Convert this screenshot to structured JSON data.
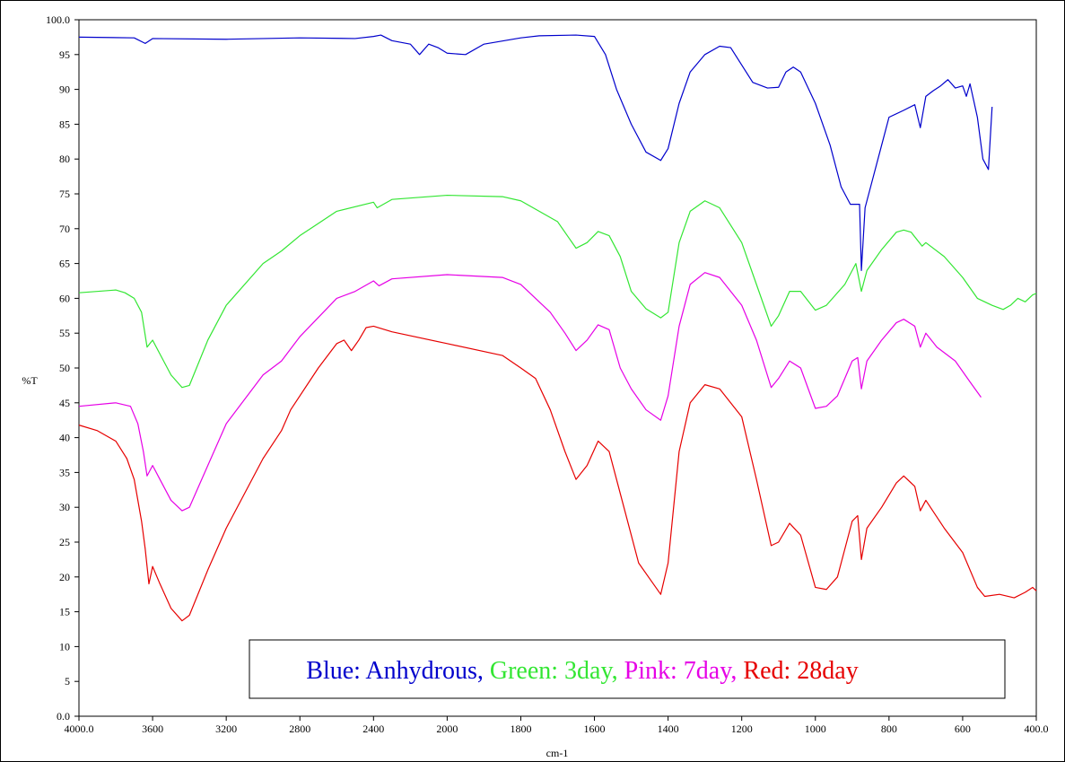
{
  "chart_data": {
    "type": "line",
    "xlabel": "cm-1",
    "ylabel": "%T",
    "ylim": [
      0,
      100
    ],
    "xlim": [
      4000,
      400
    ],
    "yticks": [
      {
        "value": 0,
        "label": "0.0"
      },
      5,
      10,
      15,
      20,
      25,
      30,
      35,
      40,
      45,
      50,
      55,
      60,
      65,
      70,
      75,
      80,
      85,
      90,
      95,
      {
        "value": 100,
        "label": "100.0"
      }
    ],
    "xticks": [
      {
        "value": 4000,
        "label": "4000.0"
      },
      3600,
      3200,
      2800,
      2400,
      2000,
      1800,
      1600,
      1400,
      1200,
      1000,
      800,
      600,
      {
        "value": 400,
        "label": "400.0"
      }
    ],
    "series": [
      {
        "name": "Blue: Anhydrous,",
        "color": "#0000cc",
        "x": [
          4000,
          3700,
          3640,
          3600,
          3200,
          2800,
          2500,
          2400,
          2360,
          2300,
          2200,
          2150,
          2100,
          2050,
          2000,
          1950,
          1900,
          1800,
          1750,
          1650,
          1600,
          1570,
          1540,
          1500,
          1460,
          1420,
          1400,
          1370,
          1340,
          1300,
          1260,
          1230,
          1200,
          1170,
          1130,
          1100,
          1080,
          1060,
          1040,
          1000,
          960,
          930,
          905,
          880,
          875,
          865,
          850,
          820,
          800,
          760,
          730,
          715,
          700,
          680,
          660,
          640,
          620,
          600,
          590,
          580,
          560,
          545,
          530,
          520
        ],
        "values": [
          97.5,
          97.4,
          96.6,
          97.3,
          97.2,
          97.4,
          97.3,
          97.6,
          97.8,
          97.0,
          96.5,
          95.0,
          96.5,
          96.0,
          95.2,
          95.0,
          96.5,
          97.4,
          97.7,
          97.8,
          97.6,
          95,
          90,
          85,
          81,
          79.8,
          81.5,
          88,
          92.5,
          95,
          96.2,
          96,
          93.5,
          91,
          90.2,
          90.3,
          92.5,
          93.2,
          92.5,
          88,
          82,
          76,
          73.5,
          73.5,
          64,
          73,
          76,
          82,
          86,
          87,
          87.8,
          84.5,
          89,
          89.8,
          90.5,
          91.4,
          90.2,
          90.5,
          89,
          90.8,
          86,
          80,
          78.5,
          87.5
        ]
      },
      {
        "name": "Green: 3day,",
        "color": "#33e633",
        "x": [
          4000,
          3800,
          3750,
          3700,
          3660,
          3630,
          3600,
          3560,
          3500,
          3440,
          3400,
          3300,
          3200,
          3000,
          2900,
          2800,
          2600,
          2400,
          2380,
          2300,
          2000,
          1850,
          1800,
          1700,
          1650,
          1620,
          1590,
          1560,
          1530,
          1500,
          1460,
          1420,
          1400,
          1370,
          1340,
          1300,
          1260,
          1200,
          1160,
          1120,
          1100,
          1070,
          1040,
          1000,
          970,
          920,
          890,
          875,
          860,
          820,
          780,
          760,
          740,
          710,
          700,
          650,
          600,
          560,
          520,
          490,
          470,
          450,
          430,
          410,
          400
        ],
        "values": [
          60.8,
          61.2,
          60.8,
          60,
          58,
          53,
          54,
          52,
          49,
          47.2,
          47.5,
          54,
          59,
          65,
          66.8,
          69,
          72.5,
          73.8,
          73,
          74.2,
          74.8,
          74.6,
          74,
          71,
          67.2,
          68,
          69.6,
          69,
          66,
          61,
          58.5,
          57.2,
          58,
          68,
          72.5,
          74,
          73,
          68,
          62,
          56,
          57.5,
          61,
          61,
          58.3,
          59,
          62,
          65,
          61,
          64,
          67,
          69.5,
          69.8,
          69.5,
          67.5,
          68,
          66,
          63,
          60,
          59,
          58.4,
          59,
          60,
          59.5,
          60.5,
          60.7
        ]
      },
      {
        "name": "Pink: 7day,",
        "color": "#e600e6",
        "x": [
          4000,
          3800,
          3720,
          3680,
          3650,
          3630,
          3600,
          3560,
          3500,
          3440,
          3400,
          3300,
          3200,
          3000,
          2900,
          2800,
          2600,
          2500,
          2400,
          2370,
          2300,
          2000,
          1850,
          1800,
          1720,
          1680,
          1650,
          1620,
          1590,
          1560,
          1530,
          1500,
          1460,
          1420,
          1400,
          1370,
          1340,
          1300,
          1260,
          1200,
          1160,
          1120,
          1100,
          1070,
          1040,
          1000,
          970,
          940,
          900,
          885,
          875,
          860,
          820,
          780,
          760,
          730,
          715,
          700,
          670,
          620,
          580,
          550
        ],
        "values": [
          44.5,
          45,
          44.5,
          42,
          38,
          34.5,
          36,
          34,
          31,
          29.5,
          30,
          36,
          42,
          49,
          51,
          54.5,
          60,
          61,
          62.5,
          61.8,
          62.8,
          63.4,
          63,
          62,
          58,
          55,
          52.5,
          54,
          56.2,
          55.5,
          50,
          47,
          44,
          42.5,
          46,
          56,
          62,
          63.7,
          63,
          59,
          54,
          47.2,
          48.5,
          51,
          50,
          44.2,
          44.5,
          46,
          51,
          51.5,
          47,
          51,
          54,
          56.5,
          57,
          56,
          53,
          55,
          53,
          51,
          48,
          45.8
        ]
      },
      {
        "name": "Red: 28day",
        "color": "#e60000",
        "x": [
          4000,
          3900,
          3800,
          3740,
          3700,
          3660,
          3640,
          3620,
          3600,
          3560,
          3500,
          3440,
          3400,
          3300,
          3200,
          3000,
          2900,
          2850,
          2700,
          2600,
          2560,
          2520,
          2480,
          2440,
          2400,
          2300,
          2000,
          1850,
          1800,
          1760,
          1720,
          1680,
          1650,
          1620,
          1590,
          1560,
          1520,
          1480,
          1440,
          1420,
          1400,
          1370,
          1340,
          1300,
          1260,
          1200,
          1160,
          1120,
          1100,
          1070,
          1040,
          1000,
          970,
          940,
          900,
          885,
          875,
          860,
          820,
          780,
          760,
          730,
          715,
          700,
          650,
          600,
          560,
          540,
          500,
          460,
          430,
          410,
          400
        ],
        "values": [
          41.8,
          41,
          39.5,
          37,
          34,
          28,
          24,
          19,
          21.5,
          19,
          15.5,
          13.7,
          14.5,
          21,
          27,
          37,
          41,
          44,
          50,
          53.5,
          54,
          52.5,
          54,
          55.8,
          56,
          55.2,
          53.5,
          51.8,
          50,
          48.5,
          44,
          38,
          34,
          36,
          39.5,
          38,
          30,
          22,
          19,
          17.5,
          22,
          38,
          45,
          47.6,
          47,
          43,
          34,
          24.5,
          25,
          27.7,
          26,
          18.5,
          18.2,
          20,
          28,
          28.8,
          22.5,
          27,
          30,
          33.5,
          34.5,
          33,
          29.5,
          31,
          27,
          23.5,
          18.5,
          17.2,
          17.5,
          17,
          17.8,
          18.5,
          18
        ]
      }
    ]
  }
}
